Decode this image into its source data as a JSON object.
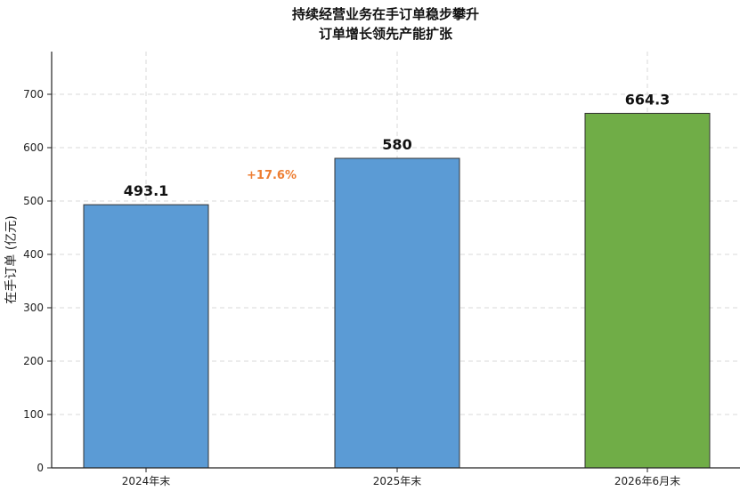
{
  "chart_data": {
    "type": "bar",
    "title_lines": [
      "持续经营业务在手订单稳步攀升",
      "订单增长领先产能扩张"
    ],
    "ylabel": "在手订单 (亿元)",
    "xlabel": "",
    "categories": [
      "2024年末",
      "2025年末",
      "2026年6月末"
    ],
    "values": [
      493.1,
      580,
      664.3
    ],
    "data_labels": [
      "493.1",
      "580",
      "664.3"
    ],
    "bar_colors": [
      "#5b9bd5",
      "#5b9bd5",
      "#70ad47"
    ],
    "yticks": [
      0,
      100,
      200,
      300,
      400,
      500,
      600,
      700
    ],
    "ylim": [
      0,
      780
    ],
    "grid": true,
    "annotations": [
      {
        "text": "+17.6%",
        "color": "#ed7d31",
        "between": [
          0,
          1
        ],
        "y": 548
      }
    ]
  }
}
